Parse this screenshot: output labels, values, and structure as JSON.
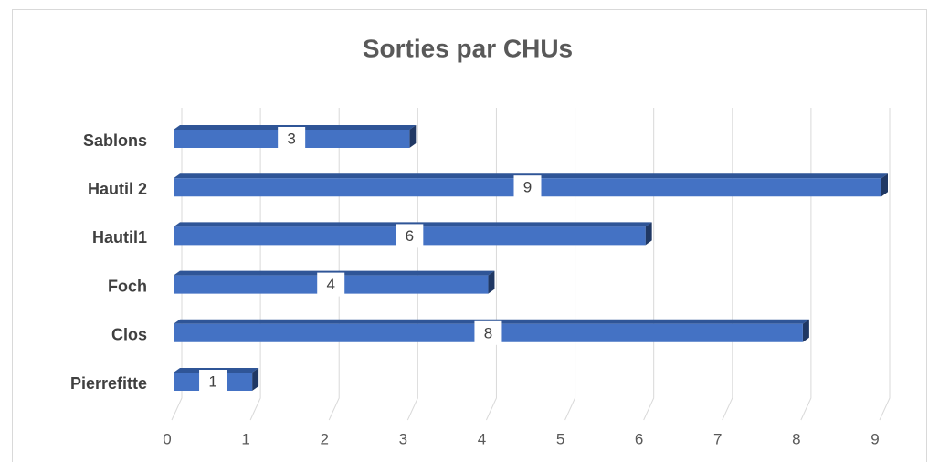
{
  "chart_data": {
    "type": "bar",
    "orientation": "horizontal",
    "title": "Sorties par CHUs",
    "categories": [
      "Pierrefitte",
      "Clos",
      "Foch",
      "Hautil1",
      "Hautil 2",
      "Sablons"
    ],
    "values": [
      1,
      8,
      4,
      6,
      9,
      3
    ],
    "color": "#4472c4",
    "xlim": [
      0,
      9
    ],
    "xticks": [
      0,
      1,
      2,
      3,
      4,
      5,
      6,
      7,
      8,
      9
    ],
    "grid": true
  }
}
